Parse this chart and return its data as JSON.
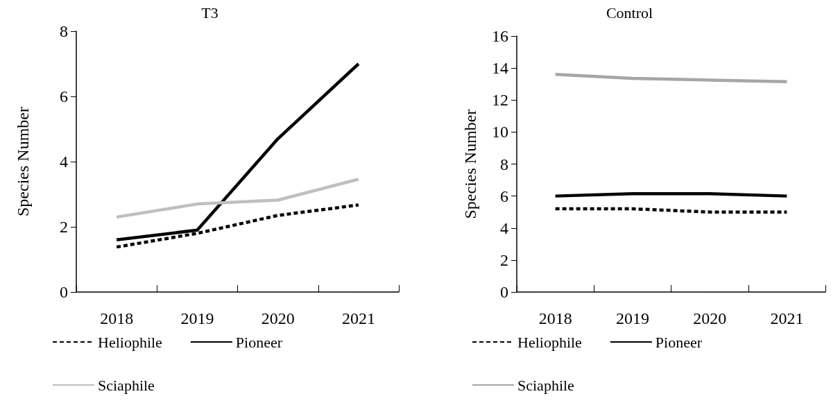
{
  "chart_data": [
    {
      "type": "line",
      "title": "T3",
      "ylabel": "Species Number",
      "categories": [
        "2018",
        "2019",
        "2020",
        "2021"
      ],
      "ylim": [
        0,
        8
      ],
      "yticks": [
        0,
        2,
        4,
        6,
        8
      ],
      "grid": false,
      "legend": "bottom",
      "marker": "none",
      "series": [
        {
          "name": "Heliophile",
          "color": "#000000",
          "line_style": "dashed",
          "values": [
            1.38,
            1.8,
            2.35,
            2.67
          ]
        },
        {
          "name": "Pioneer",
          "color": "#000000",
          "line_style": "solid",
          "values": [
            1.6,
            1.9,
            4.7,
            7.0
          ]
        },
        {
          "name": "Sciaphile",
          "color": "#bfbfbf",
          "line_style": "solid",
          "values": [
            2.3,
            2.7,
            2.82,
            3.46
          ]
        }
      ]
    },
    {
      "type": "line",
      "title": "Control",
      "ylabel": "Species Number",
      "categories": [
        "2018",
        "2019",
        "2020",
        "2021"
      ],
      "ylim": [
        0,
        16
      ],
      "yticks": [
        0,
        2,
        4,
        6,
        8,
        10,
        12,
        14,
        16
      ],
      "grid": false,
      "legend": "bottom",
      "marker": "none",
      "series": [
        {
          "name": "Heliophile",
          "color": "#000000",
          "line_style": "dashed",
          "values": [
            5.2,
            5.2,
            5.0,
            5.0
          ]
        },
        {
          "name": "Pioneer",
          "color": "#000000",
          "line_style": "solid",
          "values": [
            6.0,
            6.15,
            6.15,
            6.0
          ]
        },
        {
          "name": "Sciaphile",
          "color": "#a6a6a6",
          "line_style": "solid",
          "values": [
            13.6,
            13.35,
            13.25,
            13.15
          ]
        }
      ]
    }
  ]
}
